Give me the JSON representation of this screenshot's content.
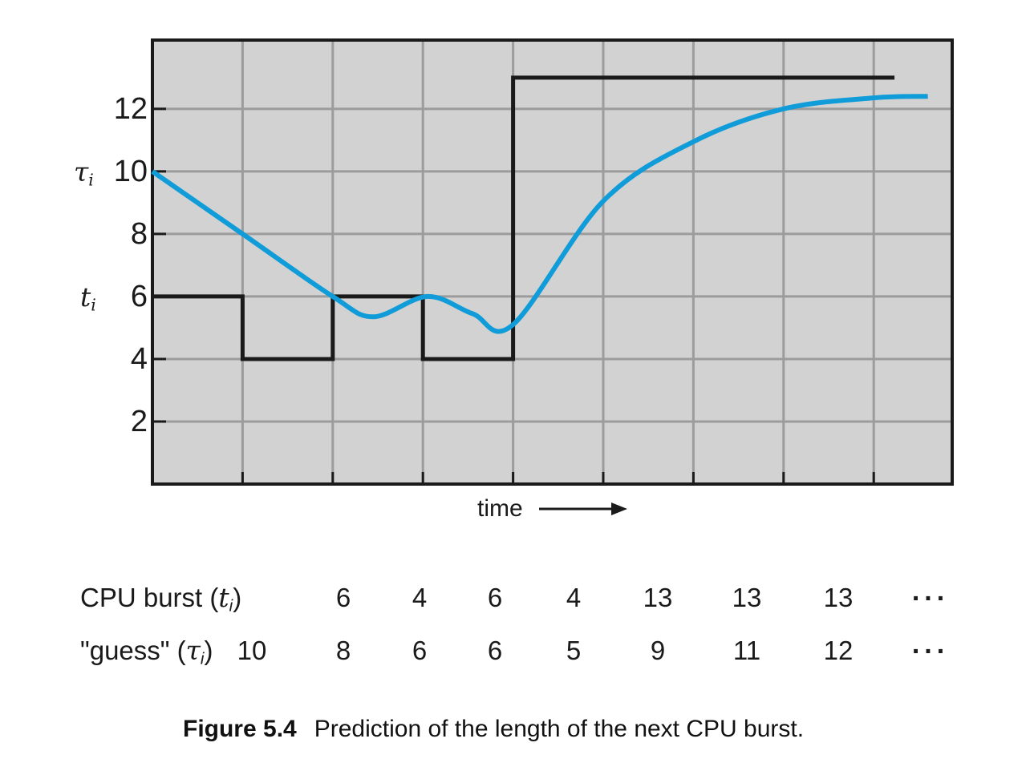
{
  "figure": {
    "caption_label": "Figure 5.4",
    "caption_text": "Prediction of the length of the next CPU burst."
  },
  "axis": {
    "x_label": "time",
    "y_tick_labels": [
      "12",
      "10",
      "8",
      "6",
      "4",
      "2"
    ],
    "tau_symbol": "τ",
    "tau_sub": "i",
    "t_symbol": "t",
    "t_sub": "i"
  },
  "table": {
    "rows": [
      {
        "label_prefix": "CPU burst (",
        "label_var": "t",
        "label_sub": "i",
        "label_suffix": ")",
        "values": [
          "",
          "6",
          "4",
          "6",
          "4",
          "13",
          "13",
          "13",
          "..."
        ]
      },
      {
        "label_prefix": "\"guess\" (",
        "label_var": "τ",
        "label_sub": "i",
        "label_suffix": ")",
        "values": [
          "10",
          "8",
          "6",
          "6",
          "5",
          "9",
          "11",
          "12",
          "..."
        ]
      }
    ]
  },
  "chart_data": {
    "type": "line",
    "title": "Prediction of the length of the next CPU burst",
    "xlabel": "time",
    "ylabel": "",
    "xlim": [
      0,
      8.87
    ],
    "ylim": [
      0,
      14.2
    ],
    "grid": true,
    "y_ticks": [
      2,
      4,
      6,
      8,
      10,
      12
    ],
    "x_gridlines": [
      1,
      2,
      3,
      4,
      5,
      6,
      7,
      8
    ],
    "legend_position": "none",
    "colors": {
      "plot_bg": "#d2d2d2",
      "grid": "#9c9c9c",
      "border": "#1a1a1a"
    },
    "series": [
      {
        "name": "CPU burst (ti)",
        "type": "step",
        "color": "#1a1a1a",
        "stroke_width": 5,
        "segments": [
          {
            "x0": 0,
            "x1": 1,
            "y": 6
          },
          {
            "x0": 1,
            "x1": 2,
            "y": 4
          },
          {
            "x0": 2,
            "x1": 3,
            "y": 6
          },
          {
            "x0": 3,
            "x1": 4,
            "y": 4
          },
          {
            "x0": 4,
            "x1": 8.23,
            "y": 13
          }
        ]
      },
      {
        "name": "guess (τi)",
        "type": "smooth",
        "color": "#0f9cd8",
        "stroke_width": 6,
        "points": [
          [
            0,
            10
          ],
          [
            1,
            8
          ],
          [
            2,
            6
          ],
          [
            2.45,
            5.35
          ],
          [
            3.05,
            6
          ],
          [
            3.55,
            5.45
          ],
          [
            4,
            5.1
          ],
          [
            5,
            9.05
          ],
          [
            6,
            10.95
          ],
          [
            7,
            12
          ],
          [
            8,
            12.35
          ],
          [
            8.6,
            12.4
          ]
        ]
      }
    ]
  }
}
